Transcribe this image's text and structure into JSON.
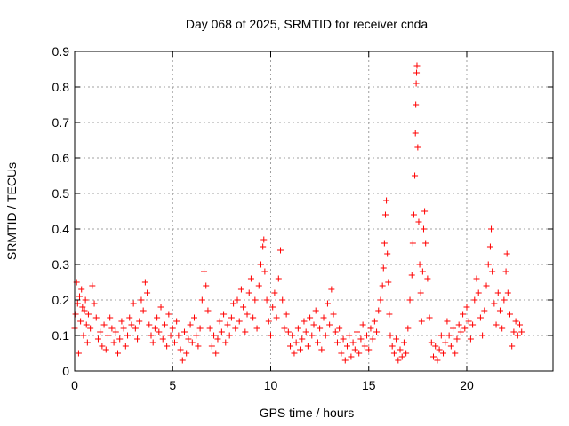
{
  "chart_data": {
    "type": "scatter",
    "title": "Day 068 of 2025, SRMTID for receiver cnda",
    "xlabel": "GPS time / hours",
    "ylabel": "SRMTID / TECUs",
    "xlim": [
      0,
      24.4
    ],
    "ylim": [
      0,
      0.9
    ],
    "xticks": [
      0,
      5,
      10,
      15,
      20
    ],
    "yticks": [
      0,
      0.1,
      0.2,
      0.3,
      0.4,
      0.5,
      0.6,
      0.7,
      0.8,
      0.9
    ],
    "grid": true,
    "marker": "+",
    "color": "#ff0000",
    "series": [
      {
        "name": "SRMTID",
        "points": [
          [
            0.0,
            0.12
          ],
          [
            0.05,
            0.16
          ],
          [
            0.1,
            0.25
          ],
          [
            0.15,
            0.19
          ],
          [
            0.2,
            0.05
          ],
          [
            0.25,
            0.21
          ],
          [
            0.3,
            0.14
          ],
          [
            0.35,
            0.23
          ],
          [
            0.4,
            0.18
          ],
          [
            0.45,
            0.1
          ],
          [
            0.5,
            0.17
          ],
          [
            0.55,
            0.2
          ],
          [
            0.6,
            0.13
          ],
          [
            0.65,
            0.08
          ],
          [
            0.7,
            0.16
          ],
          [
            0.8,
            0.12
          ],
          [
            0.9,
            0.24
          ],
          [
            1.0,
            0.19
          ],
          [
            1.1,
            0.15
          ],
          [
            1.2,
            0.09
          ],
          [
            1.3,
            0.11
          ],
          [
            1.4,
            0.07
          ],
          [
            1.5,
            0.13
          ],
          [
            1.6,
            0.06
          ],
          [
            1.7,
            0.1
          ],
          [
            1.8,
            0.15
          ],
          [
            1.9,
            0.12
          ],
          [
            2.0,
            0.08
          ],
          [
            2.1,
            0.11
          ],
          [
            2.2,
            0.05
          ],
          [
            2.3,
            0.09
          ],
          [
            2.4,
            0.14
          ],
          [
            2.5,
            0.12
          ],
          [
            2.6,
            0.07
          ],
          [
            2.7,
            0.1
          ],
          [
            2.8,
            0.15
          ],
          [
            2.9,
            0.13
          ],
          [
            3.0,
            0.19
          ],
          [
            3.1,
            0.12
          ],
          [
            3.2,
            0.09
          ],
          [
            3.3,
            0.14
          ],
          [
            3.4,
            0.2
          ],
          [
            3.5,
            0.17
          ],
          [
            3.6,
            0.25
          ],
          [
            3.7,
            0.22
          ],
          [
            3.8,
            0.13
          ],
          [
            3.9,
            0.1
          ],
          [
            4.0,
            0.08
          ],
          [
            4.1,
            0.12
          ],
          [
            4.2,
            0.15
          ],
          [
            4.3,
            0.11
          ],
          [
            4.4,
            0.18
          ],
          [
            4.5,
            0.09
          ],
          [
            4.6,
            0.13
          ],
          [
            4.7,
            0.07
          ],
          [
            4.8,
            0.16
          ],
          [
            4.9,
            0.1
          ],
          [
            5.0,
            0.12
          ],
          [
            5.1,
            0.08
          ],
          [
            5.2,
            0.14
          ],
          [
            5.3,
            0.1
          ],
          [
            5.4,
            0.06
          ],
          [
            5.5,
            0.03
          ],
          [
            5.6,
            0.11
          ],
          [
            5.7,
            0.05
          ],
          [
            5.8,
            0.09
          ],
          [
            5.9,
            0.13
          ],
          [
            6.0,
            0.08
          ],
          [
            6.1,
            0.15
          ],
          [
            6.2,
            0.1
          ],
          [
            6.3,
            0.07
          ],
          [
            6.4,
            0.12
          ],
          [
            6.5,
            0.2
          ],
          [
            6.6,
            0.28
          ],
          [
            6.7,
            0.24
          ],
          [
            6.8,
            0.17
          ],
          [
            6.9,
            0.12
          ],
          [
            7.0,
            0.07
          ],
          [
            7.1,
            0.1
          ],
          [
            7.2,
            0.05
          ],
          [
            7.3,
            0.09
          ],
          [
            7.4,
            0.14
          ],
          [
            7.5,
            0.11
          ],
          [
            7.6,
            0.16
          ],
          [
            7.7,
            0.08
          ],
          [
            7.8,
            0.13
          ],
          [
            7.9,
            0.1
          ],
          [
            8.0,
            0.15
          ],
          [
            8.1,
            0.19
          ],
          [
            8.2,
            0.12
          ],
          [
            8.3,
            0.2
          ],
          [
            8.4,
            0.14
          ],
          [
            8.5,
            0.23
          ],
          [
            8.6,
            0.18
          ],
          [
            8.7,
            0.11
          ],
          [
            8.8,
            0.16
          ],
          [
            8.9,
            0.22
          ],
          [
            9.0,
            0.26
          ],
          [
            9.1,
            0.15
          ],
          [
            9.2,
            0.2
          ],
          [
            9.3,
            0.12
          ],
          [
            9.4,
            0.24
          ],
          [
            9.5,
            0.3
          ],
          [
            9.6,
            0.35
          ],
          [
            9.65,
            0.37
          ],
          [
            9.7,
            0.28
          ],
          [
            9.8,
            0.2
          ],
          [
            9.9,
            0.14
          ],
          [
            10.0,
            0.1
          ],
          [
            10.1,
            0.18
          ],
          [
            10.2,
            0.22
          ],
          [
            10.3,
            0.15
          ],
          [
            10.4,
            0.26
          ],
          [
            10.5,
            0.34
          ],
          [
            10.6,
            0.2
          ],
          [
            10.7,
            0.12
          ],
          [
            10.8,
            0.16
          ],
          [
            10.9,
            0.11
          ],
          [
            11.0,
            0.07
          ],
          [
            11.1,
            0.1
          ],
          [
            11.2,
            0.05
          ],
          [
            11.3,
            0.08
          ],
          [
            11.4,
            0.12
          ],
          [
            11.5,
            0.06
          ],
          [
            11.6,
            0.09
          ],
          [
            11.7,
            0.14
          ],
          [
            11.8,
            0.11
          ],
          [
            11.9,
            0.07
          ],
          [
            12.0,
            0.15
          ],
          [
            12.1,
            0.1
          ],
          [
            12.2,
            0.13
          ],
          [
            12.3,
            0.17
          ],
          [
            12.4,
            0.08
          ],
          [
            12.5,
            0.12
          ],
          [
            12.6,
            0.06
          ],
          [
            12.7,
            0.15
          ],
          [
            12.8,
            0.1
          ],
          [
            12.9,
            0.19
          ],
          [
            13.0,
            0.13
          ],
          [
            13.1,
            0.23
          ],
          [
            13.2,
            0.16
          ],
          [
            13.3,
            0.11
          ],
          [
            13.4,
            0.08
          ],
          [
            13.5,
            0.12
          ],
          [
            13.6,
            0.05
          ],
          [
            13.7,
            0.09
          ],
          [
            13.8,
            0.03
          ],
          [
            13.9,
            0.07
          ],
          [
            14.0,
            0.1
          ],
          [
            14.1,
            0.04
          ],
          [
            14.2,
            0.08
          ],
          [
            14.3,
            0.06
          ],
          [
            14.4,
            0.11
          ],
          [
            14.5,
            0.05
          ],
          [
            14.6,
            0.09
          ],
          [
            14.7,
            0.13
          ],
          [
            14.8,
            0.07
          ],
          [
            14.9,
            0.1
          ],
          [
            15.0,
            0.06
          ],
          [
            15.1,
            0.12
          ],
          [
            15.2,
            0.09
          ],
          [
            15.3,
            0.14
          ],
          [
            15.4,
            0.11
          ],
          [
            15.5,
            0.17
          ],
          [
            15.6,
            0.2
          ],
          [
            15.7,
            0.24
          ],
          [
            15.75,
            0.29
          ],
          [
            15.8,
            0.36
          ],
          [
            15.85,
            0.44
          ],
          [
            15.9,
            0.48
          ],
          [
            15.95,
            0.33
          ],
          [
            16.0,
            0.25
          ],
          [
            16.05,
            0.16
          ],
          [
            16.1,
            0.1
          ],
          [
            16.2,
            0.07
          ],
          [
            16.3,
            0.05
          ],
          [
            16.4,
            0.09
          ],
          [
            16.5,
            0.03
          ],
          [
            16.6,
            0.06
          ],
          [
            16.7,
            0.04
          ],
          [
            16.8,
            0.08
          ],
          [
            16.9,
            0.05
          ],
          [
            17.0,
            0.12
          ],
          [
            17.1,
            0.2
          ],
          [
            17.2,
            0.27
          ],
          [
            17.25,
            0.36
          ],
          [
            17.3,
            0.44
          ],
          [
            17.35,
            0.55
          ],
          [
            17.38,
            0.67
          ],
          [
            17.4,
            0.75
          ],
          [
            17.42,
            0.81
          ],
          [
            17.44,
            0.84
          ],
          [
            17.46,
            0.86
          ],
          [
            17.5,
            0.63
          ],
          [
            17.55,
            0.42
          ],
          [
            17.6,
            0.3
          ],
          [
            17.65,
            0.22
          ],
          [
            17.7,
            0.14
          ],
          [
            17.75,
            0.28
          ],
          [
            17.8,
            0.4
          ],
          [
            17.85,
            0.45
          ],
          [
            17.9,
            0.36
          ],
          [
            18.0,
            0.26
          ],
          [
            18.1,
            0.15
          ],
          [
            18.2,
            0.08
          ],
          [
            18.3,
            0.04
          ],
          [
            18.4,
            0.07
          ],
          [
            18.5,
            0.03
          ],
          [
            18.6,
            0.06
          ],
          [
            18.7,
            0.1
          ],
          [
            18.8,
            0.05
          ],
          [
            18.9,
            0.08
          ],
          [
            19.0,
            0.14
          ],
          [
            19.1,
            0.1
          ],
          [
            19.2,
            0.07
          ],
          [
            19.3,
            0.12
          ],
          [
            19.4,
            0.05
          ],
          [
            19.5,
            0.09
          ],
          [
            19.6,
            0.13
          ],
          [
            19.7,
            0.11
          ],
          [
            19.8,
            0.16
          ],
          [
            19.9,
            0.12
          ],
          [
            20.0,
            0.18
          ],
          [
            20.1,
            0.14
          ],
          [
            20.2,
            0.09
          ],
          [
            20.3,
            0.13
          ],
          [
            20.4,
            0.2
          ],
          [
            20.5,
            0.26
          ],
          [
            20.6,
            0.22
          ],
          [
            20.7,
            0.15
          ],
          [
            20.8,
            0.1
          ],
          [
            20.9,
            0.17
          ],
          [
            21.0,
            0.24
          ],
          [
            21.1,
            0.3
          ],
          [
            21.2,
            0.35
          ],
          [
            21.25,
            0.4
          ],
          [
            21.3,
            0.28
          ],
          [
            21.4,
            0.19
          ],
          [
            21.5,
            0.13
          ],
          [
            21.6,
            0.22
          ],
          [
            21.7,
            0.17
          ],
          [
            21.8,
            0.12
          ],
          [
            21.9,
            0.2
          ],
          [
            22.0,
            0.28
          ],
          [
            22.05,
            0.33
          ],
          [
            22.1,
            0.22
          ],
          [
            22.2,
            0.16
          ],
          [
            22.3,
            0.07
          ],
          [
            22.4,
            0.11
          ],
          [
            22.5,
            0.14
          ],
          [
            22.6,
            0.1
          ],
          [
            22.7,
            0.13
          ],
          [
            22.8,
            0.11
          ]
        ]
      }
    ]
  }
}
